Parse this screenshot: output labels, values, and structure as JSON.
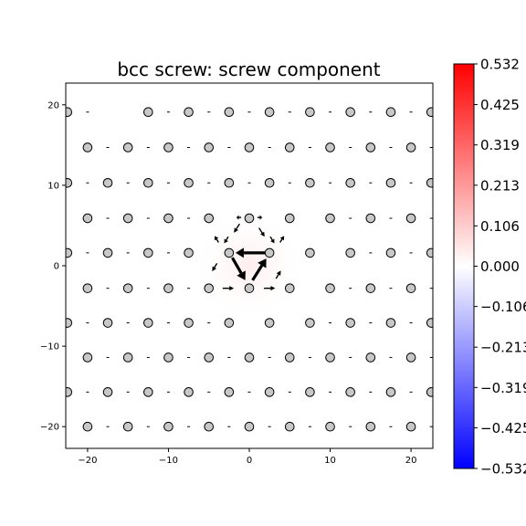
{
  "chart_data": {
    "type": "scatter",
    "title": "bcc screw: screw component",
    "xlabel": "",
    "ylabel": "",
    "xlim": [
      -22.7,
      22.7
    ],
    "ylim": [
      -22.7,
      22.7
    ],
    "xticks": [
      -20,
      -10,
      0,
      10,
      20
    ],
    "yticks": [
      -20,
      -10,
      0,
      10,
      20
    ],
    "grid": false,
    "colorbar": {
      "range": [
        -0.532,
        0.532
      ],
      "tick_values": [
        0.532,
        0.425,
        0.319,
        0.213,
        0.106,
        0.0,
        -0.106,
        -0.213,
        -0.319,
        -0.425,
        -0.532
      ],
      "tick_labels": [
        "0.532",
        "0.425",
        "0.319",
        "0.213",
        "0.106",
        "0.000",
        "−0.106",
        "−0.213",
        "−0.319",
        "−0.425",
        "−0.532"
      ],
      "colormap": "bwr",
      "colors": {
        "low": "#0000ff",
        "mid": "#ffffff",
        "high": "#ff0000"
      }
    },
    "background_field": {
      "peak_value": 0.04,
      "center": [
        0,
        0
      ],
      "falloff_radius": 7
    },
    "atom_rows": [
      {
        "y": 19.1,
        "x": [
          -22.5,
          -12.5,
          -7.5,
          -2.5,
          2.5,
          7.5,
          12.5,
          17.5,
          22.5
        ]
      },
      {
        "y": 14.7,
        "x": [
          -20.0,
          -15.0,
          -10.0,
          -5.0,
          0.0,
          5.0,
          10.0,
          15.0,
          20.0
        ]
      },
      {
        "y": 10.3,
        "x": [
          -22.5,
          -17.5,
          -12.5,
          -7.5,
          -2.5,
          2.5,
          7.5,
          12.5,
          17.5,
          22.5
        ]
      },
      {
        "y": 5.9,
        "x": [
          -20.0,
          -15.0,
          -10.0,
          -5.0,
          0.0,
          5.0,
          10.0,
          15.0,
          20.0
        ]
      },
      {
        "y": 1.6,
        "x": [
          -22.5,
          -17.5,
          -12.5,
          -7.5,
          -2.5,
          2.5,
          7.5,
          12.5,
          17.5,
          22.5
        ]
      },
      {
        "y": -2.8,
        "x": [
          -20.0,
          -15.0,
          -10.0,
          -5.0,
          0.0,
          5.0,
          10.0,
          15.0,
          20.0
        ]
      },
      {
        "y": -7.1,
        "x": [
          -22.5,
          -17.5,
          -12.5,
          -7.5,
          -2.5,
          2.5,
          7.5,
          12.5,
          17.5,
          22.5
        ]
      },
      {
        "y": -11.4,
        "x": [
          -20.0,
          -15.0,
          -10.0,
          -5.0,
          0.0,
          5.0,
          10.0,
          15.0,
          20.0
        ]
      },
      {
        "y": -15.7,
        "x": [
          -22.5,
          -17.5,
          -12.5,
          -7.5,
          -2.5,
          2.5,
          7.5,
          12.5,
          17.5,
          22.5
        ]
      },
      {
        "y": -20.0,
        "x": [
          -20.0,
          -15.0,
          -10.0,
          -5.0,
          0.0,
          5.0,
          10.0,
          15.0,
          20.0
        ]
      }
    ],
    "arrows": [
      {
        "x0": 2.0,
        "y0": 1.6,
        "dx": -3.7,
        "dy": 0.0
      },
      {
        "x0": -2.1,
        "y0": 1.0,
        "dx": 1.6,
        "dy": -2.8
      },
      {
        "x0": 0.4,
        "y0": -1.8,
        "dx": 1.7,
        "dy": 2.7
      },
      {
        "x0": -1.2,
        "y0": 5.2,
        "dx": -0.7,
        "dy": -1.1
      },
      {
        "x0": 1.2,
        "y0": 4.7,
        "dx": 0.7,
        "dy": -1.1
      },
      {
        "x0": -4.0,
        "y0": 0.3,
        "dx": -0.6,
        "dy": -1.0
      },
      {
        "x0": 3.3,
        "y0": -1.6,
        "dx": 0.6,
        "dy": 1.0
      },
      {
        "x0": -3.3,
        "y0": -2.8,
        "dx": 1.4,
        "dy": 0.0
      },
      {
        "x0": 1.8,
        "y0": -2.8,
        "dx": 1.4,
        "dy": 0.0
      },
      {
        "x0": -3.8,
        "y0": 2.9,
        "dx": -0.5,
        "dy": 0.8
      },
      {
        "x0": 3.8,
        "y0": 2.9,
        "dx": 0.5,
        "dy": 0.8
      },
      {
        "x0": -1.0,
        "y0": 6.0,
        "dx": -0.6,
        "dy": 0.0
      },
      {
        "x0": 1.0,
        "y0": 6.0,
        "dx": 0.6,
        "dy": 0.0
      },
      {
        "x0": -2.6,
        "y0": 3.6,
        "dx": -0.5,
        "dy": -0.8
      },
      {
        "x0": 2.6,
        "y0": 3.6,
        "dx": 0.5,
        "dy": -0.8
      }
    ]
  }
}
